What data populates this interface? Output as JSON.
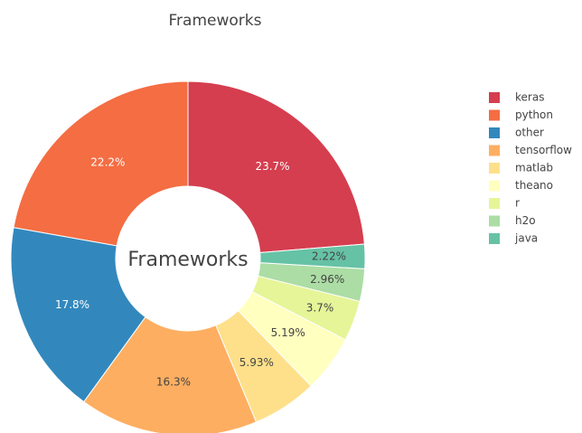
{
  "chart_data": {
    "type": "donut",
    "title": "Frameworks",
    "center_text": "Frameworks",
    "categories": [
      "keras",
      "python",
      "other",
      "tensorflow",
      "matlab",
      "theano",
      "r",
      "h2o",
      "java"
    ],
    "values": [
      23.7,
      22.2,
      17.8,
      16.3,
      5.93,
      5.19,
      3.7,
      2.96,
      2.22
    ],
    "value_labels": [
      "23.7%",
      "22.2%",
      "17.8%",
      "16.3%",
      "5.93%",
      "5.19%",
      "3.7%",
      "2.96%",
      "2.22%"
    ],
    "colors": [
      "#d53e4f",
      "#f46d43",
      "#3288bd",
      "#fdae61",
      "#fee08b",
      "#ffffbf",
      "#e6f598",
      "#abdda4",
      "#66c2a5"
    ],
    "legend": "right"
  }
}
